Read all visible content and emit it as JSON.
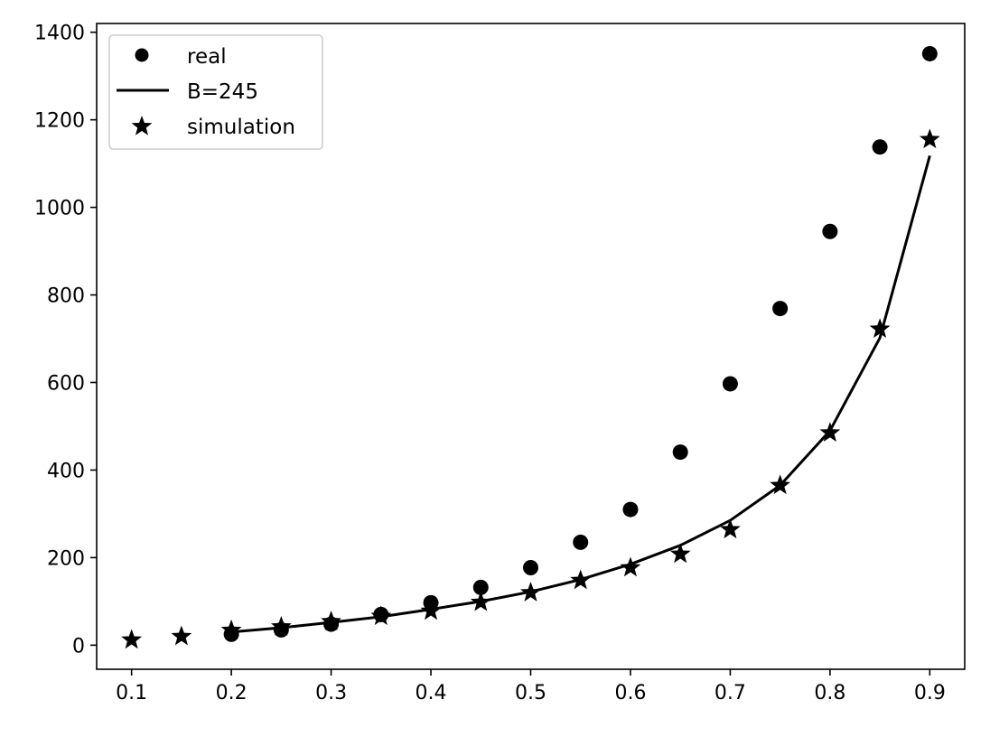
{
  "chart_data": {
    "type": "scatter",
    "title": "",
    "xlabel": "",
    "ylabel": "",
    "xlim": [
      0.065,
      0.935
    ],
    "ylim": [
      -55,
      1420
    ],
    "x_ticks": [
      0.1,
      0.2,
      0.3,
      0.4,
      0.5,
      0.6,
      0.7,
      0.8,
      0.9
    ],
    "x_tick_labels": [
      "0.1",
      "0.2",
      "0.3",
      "0.4",
      "0.5",
      "0.6",
      "0.7",
      "0.8",
      "0.9"
    ],
    "y_ticks": [
      0,
      200,
      400,
      600,
      800,
      1000,
      1200,
      1400
    ],
    "y_tick_labels": [
      "0",
      "200",
      "400",
      "600",
      "800",
      "1000",
      "1200",
      "1400"
    ],
    "grid": false,
    "legend_position": "top-left",
    "series": [
      {
        "name": "real",
        "kind": "markers",
        "marker": "circle",
        "color": "#000000",
        "x": [
          0.2,
          0.25,
          0.3,
          0.35,
          0.4,
          0.45,
          0.5,
          0.55,
          0.6,
          0.65,
          0.7,
          0.75,
          0.8,
          0.85,
          0.9
        ],
        "y": [
          25,
          35,
          48,
          70,
          97,
          132,
          177,
          235,
          310,
          441,
          597,
          769,
          945,
          1138,
          1351
        ]
      },
      {
        "name": "B=245",
        "kind": "line",
        "color": "#000000",
        "x": [
          0.2,
          0.25,
          0.3,
          0.35,
          0.4,
          0.45,
          0.5,
          0.55,
          0.6,
          0.65,
          0.7,
          0.75,
          0.8,
          0.85,
          0.9
        ],
        "y": [
          30,
          40,
          52,
          65,
          82,
          100,
          122,
          150,
          185,
          228,
          285,
          365,
          490,
          702,
          1118
        ]
      },
      {
        "name": "simulation",
        "kind": "markers",
        "marker": "star",
        "color": "#000000",
        "x": [
          0.1,
          0.15,
          0.2,
          0.25,
          0.3,
          0.35,
          0.4,
          0.45,
          0.5,
          0.55,
          0.6,
          0.65,
          0.7,
          0.75,
          0.8,
          0.85,
          0.9
        ],
        "y": [
          12,
          20,
          34,
          42,
          54,
          66,
          78,
          98,
          120,
          148,
          177,
          208,
          264,
          365,
          485,
          722,
          1155
        ]
      }
    ]
  }
}
